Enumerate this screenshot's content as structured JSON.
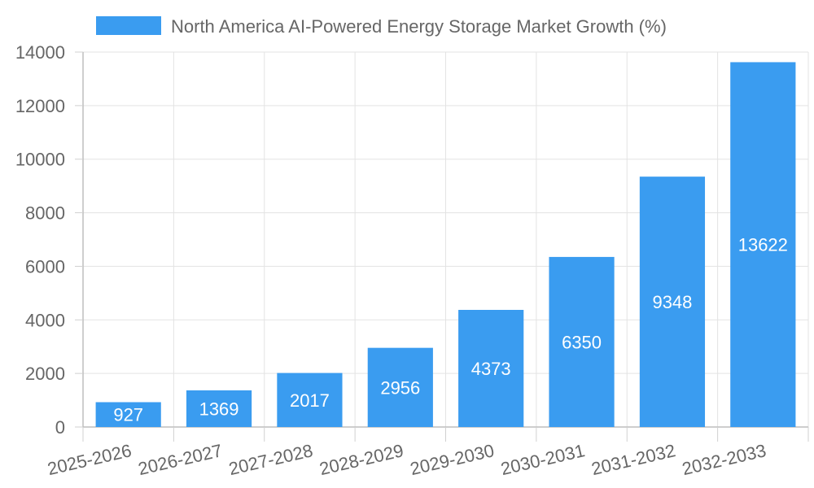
{
  "chart_data": {
    "type": "bar",
    "categories": [
      "2025-2026",
      "2026-2027",
      "2027-2028",
      "2028-2029",
      "2029-2030",
      "2030-2031",
      "2031-2032",
      "2032-2033"
    ],
    "series": [
      {
        "name": "North America AI-Powered Energy Storage Market Growth (%)",
        "values": [
          927,
          1369,
          2017,
          2956,
          4373,
          6350,
          9348,
          13622
        ],
        "color": "#3a9cf0"
      }
    ],
    "ylim": [
      0,
      14000
    ],
    "yticks": [
      0,
      2000,
      4000,
      6000,
      8000,
      10000,
      12000,
      14000
    ],
    "grid": true,
    "legend_position": "top-center",
    "data_labels": "inside-bar-center",
    "x_tick_rotation": "slanted"
  }
}
